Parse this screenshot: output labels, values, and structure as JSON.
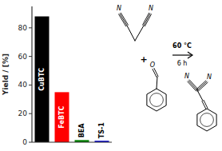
{
  "chart_data": {
    "type": "bar",
    "categories": [
      "CuBTC",
      "FeBTC",
      "BEA",
      "TS-1"
    ],
    "values": [
      88,
      35,
      1.5,
      1.0
    ],
    "colors": [
      "#000000",
      "#ff0000",
      "#008000",
      "#0000cc"
    ],
    "ylabel": "Yield / [%]",
    "ylim": [
      0,
      95
    ],
    "yticks": [
      0,
      20,
      40,
      60,
      80
    ],
    "tick_labels": "y",
    "annotations": [
      "N",
      "N",
      "+",
      "O",
      "60 °C",
      "6 h",
      "N",
      "N"
    ]
  }
}
